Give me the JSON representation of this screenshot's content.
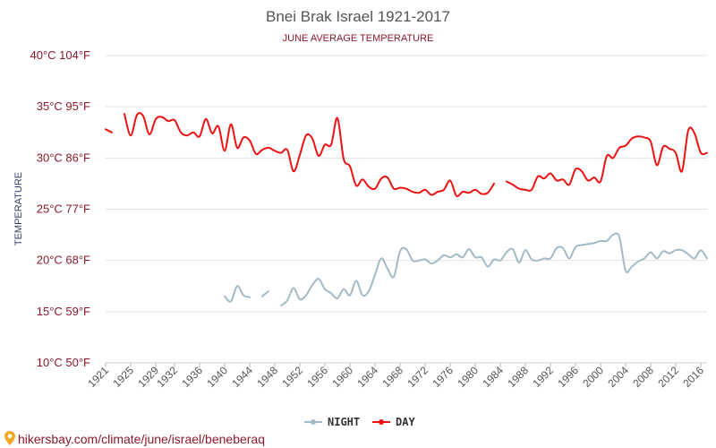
{
  "chart_data": {
    "type": "line",
    "title": "Bnei Brak Israel 1921-2017",
    "subtitle": "JUNE AVERAGE TEMPERATURE",
    "ylabel": "TEMPERATURE",
    "xlabel": "",
    "ylim": [
      10,
      40
    ],
    "xlim": [
      1921,
      2017
    ],
    "y_ticks": [
      {
        "value": 10,
        "label": "10°C 50°F"
      },
      {
        "value": 15,
        "label": "15°C 59°F"
      },
      {
        "value": 20,
        "label": "20°C 68°F"
      },
      {
        "value": 25,
        "label": "25°C 77°F"
      },
      {
        "value": 30,
        "label": "30°C 86°F"
      },
      {
        "value": 35,
        "label": "35°C 95°F"
      },
      {
        "value": 40,
        "label": "40°C 104°F"
      }
    ],
    "x_ticks": [
      "1921",
      "1925",
      "1929",
      "1932",
      "1936",
      "1940",
      "1944",
      "1948",
      "1952",
      "1956",
      "1960",
      "1964",
      "1968",
      "1972",
      "1976",
      "1980",
      "1984",
      "1988",
      "1992",
      "1996",
      "2000",
      "2004",
      "2008",
      "2012",
      "2016"
    ],
    "x_tick_values": [
      1921,
      1925,
      1929,
      1932,
      1936,
      1940,
      1944,
      1948,
      1952,
      1956,
      1960,
      1964,
      1968,
      1972,
      1976,
      1980,
      1984,
      1988,
      1992,
      1996,
      2000,
      2004,
      2008,
      2012,
      2016
    ],
    "grid": true,
    "legend_position": "bottom-center",
    "series": [
      {
        "name": "NIGHT",
        "color": "#a3bac6",
        "points": [
          [
            1940,
            16.5
          ],
          [
            1941,
            16.0
          ],
          [
            1942,
            17.5
          ],
          [
            1943,
            16.6
          ],
          [
            1944,
            16.4
          ],
          null,
          [
            1946,
            16.5
          ],
          [
            1947,
            17.0
          ],
          null,
          [
            1949,
            15.6
          ],
          [
            1950,
            16.1
          ],
          [
            1951,
            17.3
          ],
          [
            1952,
            16.2
          ],
          [
            1953,
            16.6
          ],
          [
            1954,
            17.6
          ],
          [
            1955,
            18.2
          ],
          [
            1956,
            17.2
          ],
          [
            1957,
            16.8
          ],
          [
            1958,
            16.3
          ],
          [
            1959,
            17.2
          ],
          [
            1960,
            16.6
          ],
          [
            1961,
            18.0
          ],
          [
            1962,
            16.6
          ],
          [
            1963,
            17.0
          ],
          [
            1964,
            18.6
          ],
          [
            1965,
            20.2
          ],
          [
            1966,
            19.2
          ],
          [
            1967,
            18.4
          ],
          [
            1968,
            20.9
          ],
          [
            1969,
            21.1
          ],
          [
            1970,
            20.0
          ],
          [
            1971,
            20.0
          ],
          [
            1972,
            20.1
          ],
          [
            1973,
            19.7
          ],
          [
            1974,
            20.0
          ],
          [
            1975,
            20.5
          ],
          [
            1976,
            20.3
          ],
          [
            1977,
            20.6
          ],
          [
            1978,
            20.3
          ],
          [
            1979,
            21.1
          ],
          [
            1980,
            20.3
          ],
          [
            1981,
            20.3
          ],
          [
            1982,
            19.4
          ],
          [
            1983,
            20.1
          ],
          [
            1984,
            20.0
          ],
          [
            1985,
            20.8
          ],
          [
            1986,
            21.1
          ],
          [
            1987,
            19.8
          ],
          [
            1988,
            21.0
          ],
          [
            1989,
            20.1
          ],
          [
            1990,
            20.0
          ],
          [
            1991,
            20.2
          ],
          [
            1992,
            20.2
          ],
          [
            1993,
            21.2
          ],
          [
            1994,
            21.2
          ],
          [
            1995,
            20.2
          ],
          [
            1996,
            21.3
          ],
          [
            1997,
            21.5
          ],
          [
            1998,
            21.6
          ],
          [
            1999,
            21.7
          ],
          [
            2000,
            21.9
          ],
          [
            2001,
            21.9
          ],
          [
            2002,
            22.5
          ],
          [
            2003,
            22.3
          ],
          [
            2004,
            19.0
          ],
          [
            2005,
            19.4
          ],
          [
            2006,
            19.9
          ],
          [
            2007,
            20.2
          ],
          [
            2008,
            20.8
          ],
          [
            2009,
            20.2
          ],
          [
            2010,
            20.9
          ],
          [
            2011,
            20.7
          ],
          [
            2012,
            21.0
          ],
          [
            2013,
            21.0
          ],
          [
            2014,
            20.6
          ],
          [
            2015,
            20.2
          ],
          [
            2016,
            21.0
          ],
          [
            2017,
            20.2
          ]
        ]
      },
      {
        "name": "DAY",
        "color": "#ee1111",
        "points": [
          [
            1921,
            32.8
          ],
          [
            1922,
            32.5
          ],
          null,
          [
            1924,
            34.3
          ],
          [
            1925,
            32.2
          ],
          [
            1926,
            34.2
          ],
          [
            1927,
            34.1
          ],
          [
            1928,
            32.3
          ],
          [
            1929,
            33.8
          ],
          [
            1930,
            34.0
          ],
          [
            1931,
            33.6
          ],
          [
            1932,
            33.7
          ],
          [
            1933,
            32.5
          ],
          [
            1934,
            32.2
          ],
          [
            1935,
            32.5
          ],
          [
            1936,
            32.1
          ],
          [
            1937,
            33.8
          ],
          [
            1938,
            32.4
          ],
          [
            1939,
            33.1
          ],
          [
            1940,
            30.7
          ],
          [
            1941,
            33.3
          ],
          [
            1942,
            31.0
          ],
          [
            1943,
            32.0
          ],
          [
            1944,
            31.7
          ],
          [
            1945,
            30.4
          ],
          [
            1946,
            30.8
          ],
          [
            1947,
            31.0
          ],
          [
            1948,
            30.7
          ],
          [
            1949,
            30.5
          ],
          [
            1950,
            30.8
          ],
          [
            1951,
            28.7
          ],
          [
            1952,
            30.3
          ],
          [
            1953,
            32.2
          ],
          [
            1954,
            31.9
          ],
          [
            1955,
            30.2
          ],
          [
            1956,
            31.3
          ],
          [
            1957,
            31.3
          ],
          [
            1958,
            33.9
          ],
          [
            1959,
            29.9
          ],
          [
            1960,
            29.2
          ],
          [
            1961,
            27.3
          ],
          [
            1962,
            27.9
          ],
          [
            1963,
            27.2
          ],
          [
            1964,
            27.0
          ],
          [
            1965,
            28.0
          ],
          [
            1966,
            28.1
          ],
          [
            1967,
            27.0
          ],
          [
            1968,
            27.1
          ],
          [
            1969,
            27.0
          ],
          [
            1970,
            26.7
          ],
          [
            1971,
            26.6
          ],
          [
            1972,
            26.9
          ],
          [
            1973,
            26.4
          ],
          [
            1974,
            26.7
          ],
          [
            1975,
            26.9
          ],
          [
            1976,
            27.8
          ],
          [
            1977,
            26.3
          ],
          [
            1978,
            26.7
          ],
          [
            1979,
            26.6
          ],
          [
            1980,
            26.9
          ],
          [
            1981,
            26.5
          ],
          [
            1982,
            26.6
          ],
          [
            1983,
            27.5
          ],
          null,
          [
            1985,
            27.7
          ],
          [
            1986,
            27.4
          ],
          [
            1987,
            27.0
          ],
          [
            1988,
            26.9
          ],
          [
            1989,
            26.9
          ],
          [
            1990,
            28.2
          ],
          [
            1991,
            28.0
          ],
          [
            1992,
            28.5
          ],
          [
            1993,
            27.8
          ],
          [
            1994,
            27.9
          ],
          [
            1995,
            27.4
          ],
          [
            1996,
            28.9
          ],
          [
            1997,
            28.7
          ],
          [
            1998,
            27.8
          ],
          [
            1999,
            28.1
          ],
          [
            2000,
            27.7
          ],
          [
            2001,
            30.2
          ],
          [
            2002,
            30.0
          ],
          [
            2003,
            31.0
          ],
          [
            2004,
            31.2
          ],
          [
            2005,
            31.9
          ],
          [
            2006,
            32.1
          ],
          [
            2007,
            32.0
          ],
          [
            2008,
            31.6
          ],
          [
            2009,
            29.3
          ],
          [
            2010,
            31.1
          ],
          [
            2011,
            30.9
          ],
          [
            2012,
            30.5
          ],
          [
            2013,
            28.7
          ],
          [
            2014,
            32.7
          ],
          [
            2015,
            32.4
          ],
          [
            2016,
            30.5
          ],
          [
            2017,
            30.5
          ]
        ]
      }
    ]
  },
  "footer": {
    "url": "hikersbay.com/climate/june/israel/beneberaq"
  }
}
